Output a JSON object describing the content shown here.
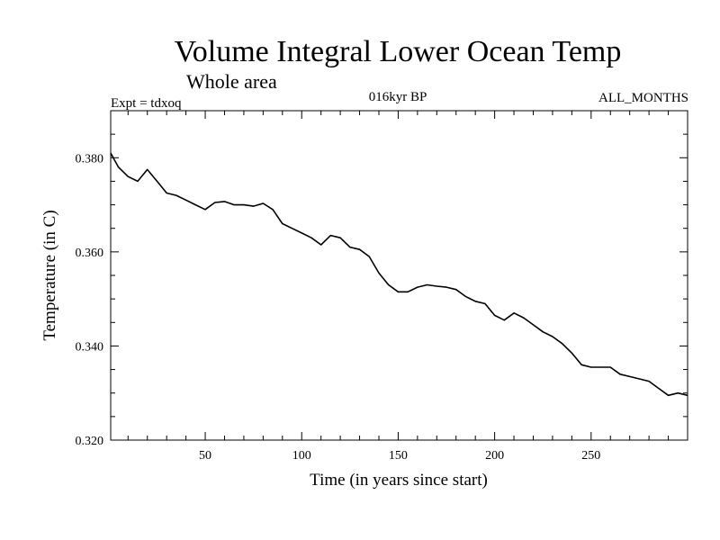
{
  "chart_data": {
    "type": "line",
    "title": "Volume Integral Lower Ocean Temp",
    "subtitle": "Whole area",
    "left_note": "Expt = tdxoq",
    "center_note": "016kyr BP",
    "right_note": "ALL_MONTHS",
    "xlabel": "Time (in years since start)",
    "ylabel": "Temperature (in C)",
    "xlim": [
      1,
      300
    ],
    "ylim": [
      0.32,
      0.39
    ],
    "x_ticks": [
      50,
      100,
      150,
      200,
      250
    ],
    "x_tick_labels": [
      "50",
      "100",
      "150",
      "200",
      "250"
    ],
    "y_ticks": [
      0.32,
      0.34,
      0.36,
      0.38
    ],
    "y_tick_labels": [
      "0.320",
      "0.340",
      "0.360",
      "0.380"
    ],
    "grid": false,
    "line_color": "#000000",
    "series": [
      {
        "x": [
          1,
          5,
          10,
          15,
          20,
          25,
          30,
          35,
          40,
          45,
          50,
          55,
          60,
          65,
          70,
          75,
          80,
          85,
          90,
          95,
          100,
          105,
          110,
          115,
          120,
          125,
          130,
          135,
          140,
          145,
          150,
          155,
          160,
          165,
          170,
          175,
          180,
          185,
          190,
          195,
          200,
          205,
          210,
          215,
          220,
          225,
          230,
          235,
          240,
          245,
          250,
          255,
          260,
          265,
          270,
          275,
          280,
          285,
          290,
          295,
          300
        ],
        "y": [
          0.381,
          0.378,
          0.376,
          0.375,
          0.3775,
          0.375,
          0.3725,
          0.372,
          0.371,
          0.37,
          0.369,
          0.3705,
          0.3707,
          0.37,
          0.37,
          0.3697,
          0.3703,
          0.369,
          0.366,
          0.365,
          0.364,
          0.363,
          0.3615,
          0.3635,
          0.363,
          0.361,
          0.3605,
          0.359,
          0.3555,
          0.353,
          0.3515,
          0.3515,
          0.3525,
          0.353,
          0.3527,
          0.3525,
          0.352,
          0.3505,
          0.3495,
          0.349,
          0.3465,
          0.3455,
          0.347,
          0.346,
          0.3445,
          0.343,
          0.342,
          0.3405,
          0.3385,
          0.336,
          0.3355,
          0.3355,
          0.3355,
          0.334,
          0.3335,
          0.333,
          0.3325,
          0.331,
          0.3295,
          0.33,
          0.3295
        ]
      }
    ]
  }
}
